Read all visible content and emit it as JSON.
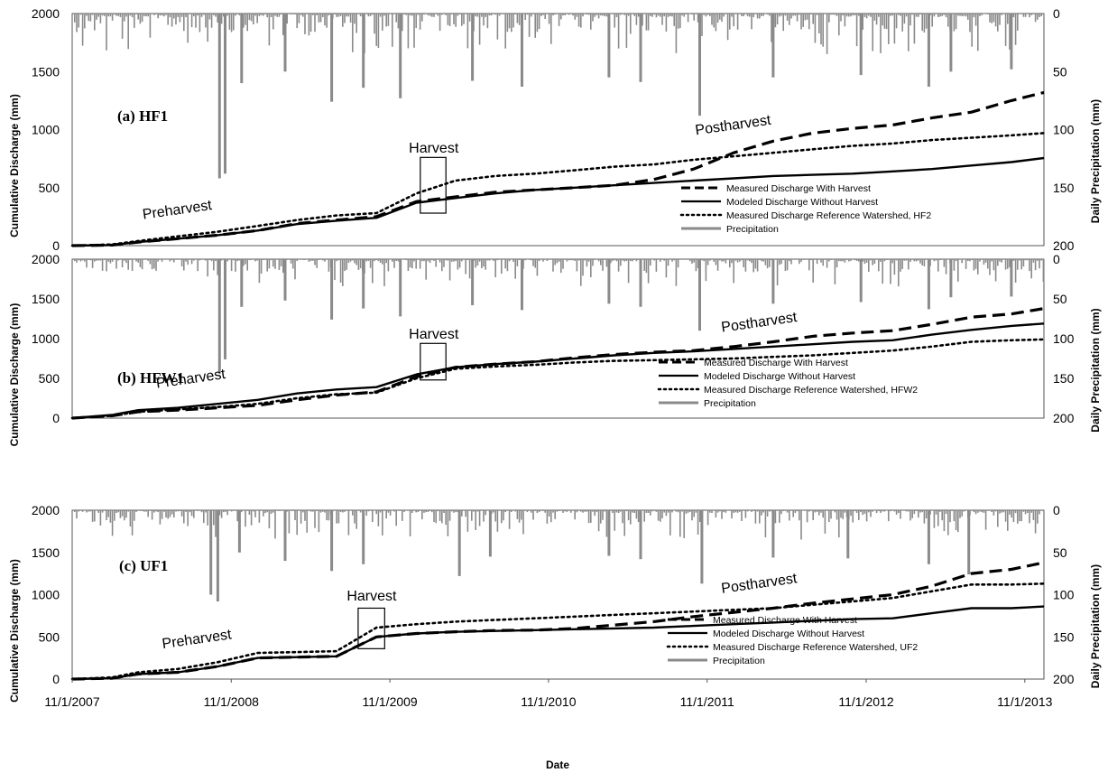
{
  "chart_data": [
    {
      "type": "line",
      "panel_label": "(a) HF1",
      "ylabel": "Cumulative Discharge (mm)",
      "y2label": "Daily Precipitation (mm)",
      "xlabel": "",
      "ylim": [
        0,
        2000
      ],
      "y2lim": [
        200,
        0
      ],
      "y2_reversed": true,
      "yticks": [
        "0",
        "500",
        "1000",
        "1500",
        "2000"
      ],
      "y2ticks": [
        "200",
        "150",
        "100",
        "50",
        "0"
      ],
      "x_start": "2007-11-01",
      "x_end": "2013-12-15",
      "annotations": [
        {
          "text": "Preharvest",
          "x": "2008-07-01",
          "y": 270
        },
        {
          "text": "Harvest",
          "x": "2010-02-10",
          "y": 800
        },
        {
          "text": "Postharvest",
          "x": "2012-01-01",
          "y": 1000
        }
      ],
      "harvest_box": {
        "x_from": "2010-01-10",
        "x_to": "2010-03-10",
        "y_from": 280,
        "y_to": 760
      },
      "legend": [
        {
          "label": "Measured Discharge With Harvest",
          "style": "dashed"
        },
        {
          "label": "Modeled Discharge Without Harvest",
          "style": "solid"
        },
        {
          "label": "Measured Discharge Reference Watershed, HF2",
          "style": "dotted"
        },
        {
          "label": "Precipitation",
          "style": "gray"
        }
      ],
      "series": [
        {
          "name": "Measured Discharge With Harvest",
          "x": [
            "2007-11-01",
            "2008-02-01",
            "2008-04-01",
            "2008-07-01",
            "2008-10-01",
            "2009-01-01",
            "2009-04-01",
            "2009-07-01",
            "2009-10-01",
            "2010-01-01",
            "2010-04-01",
            "2010-07-01",
            "2010-10-01",
            "2011-01-01",
            "2011-04-01",
            "2011-07-01",
            "2011-10-01",
            "2012-01-01",
            "2012-04-01",
            "2012-07-01",
            "2012-10-01",
            "2013-01-01",
            "2013-04-01",
            "2013-07-01",
            "2013-10-01",
            "2013-12-15"
          ],
          "y": [
            0,
            5,
            30,
            60,
            90,
            130,
            190,
            220,
            250,
            380,
            420,
            460,
            480,
            500,
            520,
            570,
            660,
            800,
            900,
            970,
            1010,
            1040,
            1100,
            1150,
            1250,
            1320
          ]
        },
        {
          "name": "Modeled Discharge Without Harvest",
          "x": [
            "2007-11-01",
            "2008-02-01",
            "2008-04-01",
            "2008-07-01",
            "2008-10-01",
            "2009-01-01",
            "2009-04-01",
            "2009-07-01",
            "2009-10-01",
            "2010-01-01",
            "2010-04-01",
            "2010-07-01",
            "2010-10-01",
            "2011-01-01",
            "2011-04-01",
            "2011-07-01",
            "2011-10-01",
            "2012-01-01",
            "2012-04-01",
            "2012-07-01",
            "2012-10-01",
            "2013-01-01",
            "2013-04-01",
            "2013-07-01",
            "2013-10-01",
            "2013-12-15"
          ],
          "y": [
            0,
            5,
            30,
            60,
            90,
            130,
            185,
            215,
            240,
            370,
            410,
            450,
            480,
            500,
            520,
            540,
            560,
            580,
            600,
            610,
            620,
            640,
            660,
            690,
            720,
            755
          ]
        },
        {
          "name": "Measured Discharge Reference Watershed, HF2",
          "x": [
            "2007-11-01",
            "2008-02-01",
            "2008-04-01",
            "2008-07-01",
            "2008-10-01",
            "2009-01-01",
            "2009-04-01",
            "2009-07-01",
            "2009-10-01",
            "2010-01-01",
            "2010-04-01",
            "2010-07-01",
            "2010-10-01",
            "2011-01-01",
            "2011-04-01",
            "2011-07-01",
            "2011-10-01",
            "2012-01-01",
            "2012-04-01",
            "2012-07-01",
            "2012-10-01",
            "2013-01-01",
            "2013-04-01",
            "2013-07-01",
            "2013-10-01",
            "2013-12-15"
          ],
          "y": [
            0,
            10,
            40,
            80,
            120,
            170,
            220,
            260,
            280,
            450,
            560,
            600,
            620,
            650,
            680,
            700,
            740,
            770,
            800,
            830,
            860,
            880,
            910,
            930,
            950,
            970
          ]
        },
        {
          "name": "Precipitation",
          "axis": "y2",
          "x": [
            "2008-10-05",
            "2008-10-18",
            "2008-11-25",
            "2009-03-05",
            "2009-06-20",
            "2009-09-01",
            "2009-11-25",
            "2010-05-10",
            "2010-09-01",
            "2011-03-20",
            "2011-06-01",
            "2011-10-15",
            "2012-04-01",
            "2012-10-20",
            "2013-03-25",
            "2013-05-15",
            "2013-10-01"
          ],
          "y": [
            142,
            138,
            60,
            50,
            76,
            64,
            73,
            58,
            63,
            55,
            59,
            88,
            55,
            53,
            63,
            50,
            48
          ]
        }
      ]
    },
    {
      "type": "line",
      "panel_label": "(b) HFW1",
      "ylabel": "Cumulative Discharge (mm)",
      "y2label": "Daily Precipitation (mm)",
      "xlabel": "",
      "ylim": [
        0,
        2000
      ],
      "y2lim": [
        200,
        0
      ],
      "y2_reversed": true,
      "yticks": [
        "0",
        "500",
        "1000",
        "1500",
        "2000"
      ],
      "y2ticks": [
        "200",
        "150",
        "100",
        "50",
        "0"
      ],
      "x_start": "2007-11-01",
      "x_end": "2013-12-15",
      "annotations": [
        {
          "text": "Preharvest",
          "x": "2008-08-01",
          "y": 440
        },
        {
          "text": "Harvest",
          "x": "2010-02-10",
          "y": 1000
        },
        {
          "text": "Postharvest",
          "x": "2012-03-01",
          "y": 1150
        }
      ],
      "harvest_box": {
        "x_from": "2010-01-10",
        "x_to": "2010-03-10",
        "y_from": 480,
        "y_to": 940
      },
      "legend": [
        {
          "label": "Measured Discharge With Harvest",
          "style": "dashed"
        },
        {
          "label": "Modeled Discharge Without Harvest",
          "style": "solid"
        },
        {
          "label": "Measured Discharge Reference Watershed, HFW2",
          "style": "dotted"
        },
        {
          "label": "Precipitation",
          "style": "gray"
        }
      ],
      "series": [
        {
          "name": "Measured Discharge With Harvest",
          "x": [
            "2007-11-01",
            "2008-02-01",
            "2008-04-01",
            "2008-07-01",
            "2008-10-01",
            "2009-01-01",
            "2009-04-01",
            "2009-07-01",
            "2009-10-01",
            "2010-01-01",
            "2010-04-01",
            "2010-07-01",
            "2010-10-01",
            "2011-01-01",
            "2011-04-01",
            "2011-07-01",
            "2011-10-01",
            "2012-01-01",
            "2012-04-01",
            "2012-07-01",
            "2012-10-01",
            "2013-01-01",
            "2013-04-01",
            "2013-07-01",
            "2013-10-01",
            "2013-12-15"
          ],
          "y": [
            0,
            30,
            80,
            100,
            130,
            160,
            230,
            290,
            330,
            520,
            640,
            680,
            710,
            760,
            800,
            830,
            850,
            900,
            960,
            1030,
            1070,
            1100,
            1180,
            1270,
            1310,
            1380
          ]
        },
        {
          "name": "Modeled Discharge Without Harvest",
          "x": [
            "2007-11-01",
            "2008-02-01",
            "2008-04-01",
            "2008-07-01",
            "2008-10-01",
            "2009-01-01",
            "2009-04-01",
            "2009-07-01",
            "2009-10-01",
            "2010-01-01",
            "2010-04-01",
            "2010-07-01",
            "2010-10-01",
            "2011-01-01",
            "2011-04-01",
            "2011-07-01",
            "2011-10-01",
            "2012-01-01",
            "2012-04-01",
            "2012-07-01",
            "2012-10-01",
            "2013-01-01",
            "2013-04-01",
            "2013-07-01",
            "2013-10-01",
            "2013-12-15"
          ],
          "y": [
            0,
            40,
            100,
            130,
            180,
            230,
            310,
            360,
            390,
            550,
            640,
            680,
            710,
            750,
            790,
            820,
            840,
            870,
            900,
            930,
            960,
            980,
            1050,
            1110,
            1160,
            1190
          ]
        },
        {
          "name": "Measured Discharge Reference Watershed, HFW2",
          "x": [
            "2007-11-01",
            "2008-02-01",
            "2008-04-01",
            "2008-07-01",
            "2008-10-01",
            "2009-01-01",
            "2009-04-01",
            "2009-07-01",
            "2009-10-01",
            "2010-01-01",
            "2010-04-01",
            "2010-07-01",
            "2010-10-01",
            "2011-01-01",
            "2011-04-01",
            "2011-07-01",
            "2011-10-01",
            "2012-01-01",
            "2012-04-01",
            "2012-07-01",
            "2012-10-01",
            "2013-01-01",
            "2013-04-01",
            "2013-07-01",
            "2013-10-01",
            "2013-12-15"
          ],
          "y": [
            0,
            30,
            80,
            110,
            140,
            180,
            250,
            300,
            320,
            500,
            620,
            650,
            670,
            700,
            720,
            730,
            740,
            750,
            770,
            790,
            820,
            850,
            900,
            960,
            980,
            990
          ]
        },
        {
          "name": "Precipitation",
          "axis": "y2",
          "x": [
            "2008-10-05",
            "2008-10-18",
            "2008-11-25",
            "2009-03-05",
            "2009-06-20",
            "2009-09-01",
            "2009-11-25",
            "2010-05-10",
            "2010-09-01",
            "2011-03-20",
            "2011-06-01",
            "2011-10-15",
            "2012-04-01",
            "2012-10-20",
            "2013-03-25",
            "2013-05-15",
            "2013-10-01"
          ],
          "y": [
            144,
            126,
            60,
            52,
            76,
            62,
            72,
            58,
            64,
            56,
            60,
            90,
            56,
            54,
            63,
            48,
            47
          ]
        }
      ]
    },
    {
      "type": "line",
      "panel_label": "(c) UF1",
      "ylabel": "Cumulative Discharge (mm)",
      "y2label": "Daily Precipitation (mm)",
      "xlabel": "Date",
      "ylim": [
        0,
        2000
      ],
      "y2lim": [
        200,
        0
      ],
      "y2_reversed": true,
      "yticks": [
        "0",
        "500",
        "1000",
        "1500",
        "2000"
      ],
      "y2ticks": [
        "200",
        "150",
        "100",
        "50",
        "0"
      ],
      "xticks": [
        "11/1/2007",
        "11/1/2008",
        "11/1/2009",
        "11/1/2010",
        "11/1/2011",
        "11/1/2012",
        "11/1/2013"
      ],
      "x_start": "2007-11-01",
      "x_end": "2013-12-15",
      "annotations": [
        {
          "text": "Preharvest",
          "x": "2008-08-15",
          "y": 420
        },
        {
          "text": "Harvest",
          "x": "2009-09-20",
          "y": 930
        },
        {
          "text": "Postharvest",
          "x": "2012-03-01",
          "y": 1080
        }
      ],
      "harvest_box": {
        "x_from": "2009-08-20",
        "x_to": "2009-10-20",
        "y_from": 360,
        "y_to": 840
      },
      "legend": [
        {
          "label": "Measured Discharge With Harvest",
          "style": "dashed"
        },
        {
          "label": "Modeled Discharge Without Harvest",
          "style": "solid"
        },
        {
          "label": "Measured Discharge Reference Watershed, UF2",
          "style": "dotted"
        },
        {
          "label": "Precipitation",
          "style": "gray"
        }
      ],
      "series": [
        {
          "name": "Measured Discharge With Harvest",
          "x": [
            "2007-11-01",
            "2008-02-01",
            "2008-04-01",
            "2008-07-01",
            "2008-10-01",
            "2009-01-01",
            "2009-04-01",
            "2009-07-01",
            "2009-10-01",
            "2010-01-01",
            "2010-04-01",
            "2010-07-01",
            "2010-10-01",
            "2011-01-01",
            "2011-04-01",
            "2011-07-01",
            "2011-10-01",
            "2012-01-01",
            "2012-04-01",
            "2012-07-01",
            "2012-10-01",
            "2013-01-01",
            "2013-04-01",
            "2013-07-01",
            "2013-10-01",
            "2013-12-15"
          ],
          "y": [
            0,
            10,
            60,
            80,
            150,
            250,
            260,
            270,
            500,
            540,
            560,
            575,
            580,
            600,
            640,
            680,
            740,
            790,
            840,
            900,
            950,
            1000,
            1100,
            1250,
            1300,
            1380
          ]
        },
        {
          "name": "Modeled Discharge Without Harvest",
          "x": [
            "2007-11-01",
            "2008-02-01",
            "2008-04-01",
            "2008-07-01",
            "2008-10-01",
            "2009-01-01",
            "2009-04-01",
            "2009-07-01",
            "2009-10-01",
            "2010-01-01",
            "2010-04-01",
            "2010-07-01",
            "2010-10-01",
            "2011-01-01",
            "2011-04-01",
            "2011-07-01",
            "2011-10-01",
            "2012-01-01",
            "2012-04-01",
            "2012-07-01",
            "2012-10-01",
            "2013-01-01",
            "2013-04-01",
            "2013-07-01",
            "2013-10-01",
            "2013-12-15"
          ],
          "y": [
            0,
            10,
            60,
            80,
            150,
            250,
            260,
            270,
            500,
            540,
            560,
            570,
            580,
            590,
            600,
            610,
            630,
            650,
            670,
            690,
            710,
            720,
            780,
            840,
            840,
            860
          ]
        },
        {
          "name": "Measured Discharge Reference Watershed, UF2",
          "x": [
            "2007-11-01",
            "2008-02-01",
            "2008-04-01",
            "2008-07-01",
            "2008-10-01",
            "2009-01-01",
            "2009-04-01",
            "2009-07-01",
            "2009-10-01",
            "2010-01-01",
            "2010-04-01",
            "2010-07-01",
            "2010-10-01",
            "2011-01-01",
            "2011-04-01",
            "2011-07-01",
            "2011-10-01",
            "2012-01-01",
            "2012-04-01",
            "2012-07-01",
            "2012-10-01",
            "2013-01-01",
            "2013-04-01",
            "2013-07-01",
            "2013-10-01",
            "2013-12-15"
          ],
          "y": [
            0,
            20,
            80,
            120,
            200,
            310,
            320,
            330,
            610,
            650,
            680,
            700,
            720,
            740,
            760,
            780,
            800,
            820,
            840,
            880,
            920,
            960,
            1040,
            1120,
            1120,
            1130
          ]
        },
        {
          "name": "Precipitation",
          "axis": "y2",
          "x": [
            "2008-09-15",
            "2008-10-01",
            "2008-11-20",
            "2009-03-05",
            "2009-06-20",
            "2009-09-01",
            "2010-04-10",
            "2010-06-20",
            "2011-03-20",
            "2011-06-01",
            "2011-10-20",
            "2012-04-01",
            "2012-09-20",
            "2013-03-25",
            "2013-06-25"
          ],
          "y": [
            100,
            108,
            50,
            60,
            72,
            64,
            78,
            55,
            54,
            58,
            87,
            56,
            57,
            64,
            76
          ]
        }
      ]
    }
  ]
}
